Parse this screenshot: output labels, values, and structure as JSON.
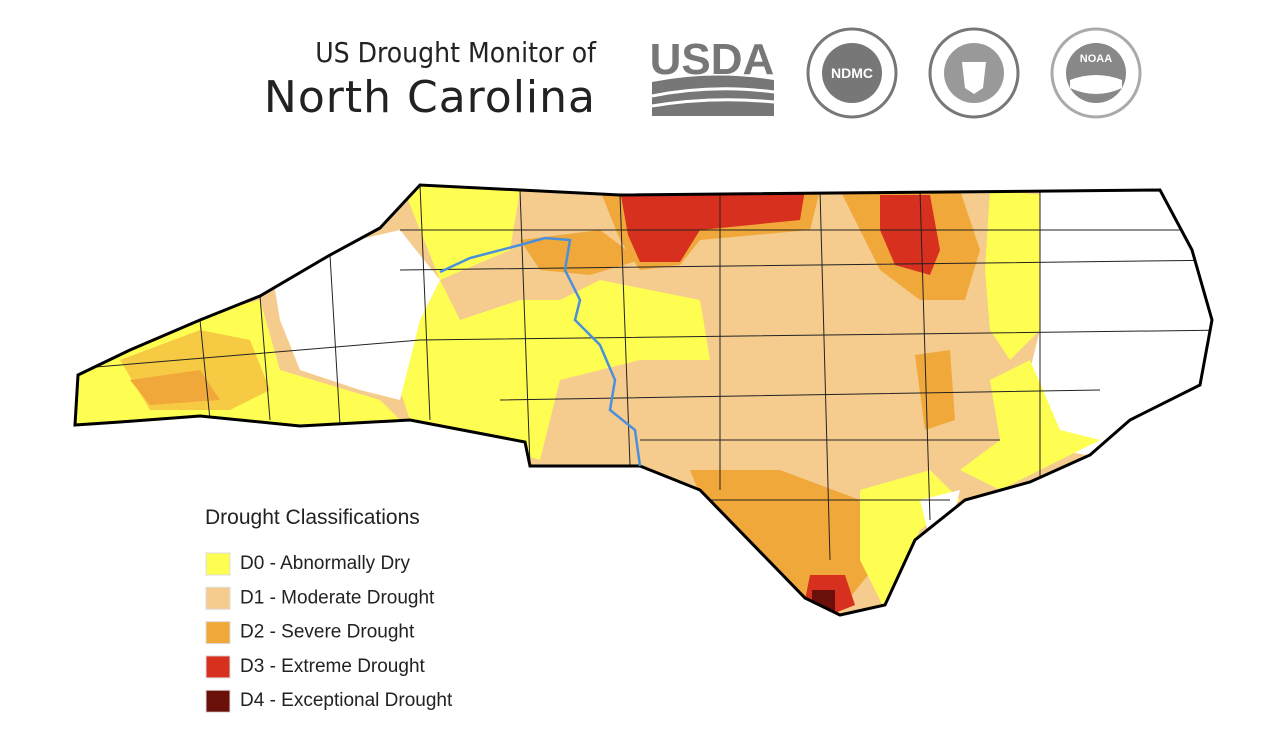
{
  "header": {
    "title_line1": "US Drought Monitor of",
    "title_line2": "North Carolina",
    "logos": [
      "USDA",
      "NDMC",
      "NOAA"
    ]
  },
  "legend": {
    "title": "Drought Classifications",
    "items": [
      {
        "label": "D0 - Abnormally Dry",
        "color": "#fefe52"
      },
      {
        "label": "D1 - Moderate Drought",
        "color": "#f5cc8e"
      },
      {
        "label": "D2 - Severe Drought",
        "color": "#f0a83a"
      },
      {
        "label": "D3 - Extreme Drought",
        "color": "#d8301f"
      },
      {
        "label": "D4 - Exceptional Drought",
        "color": "#6b0f0a"
      }
    ]
  }
}
